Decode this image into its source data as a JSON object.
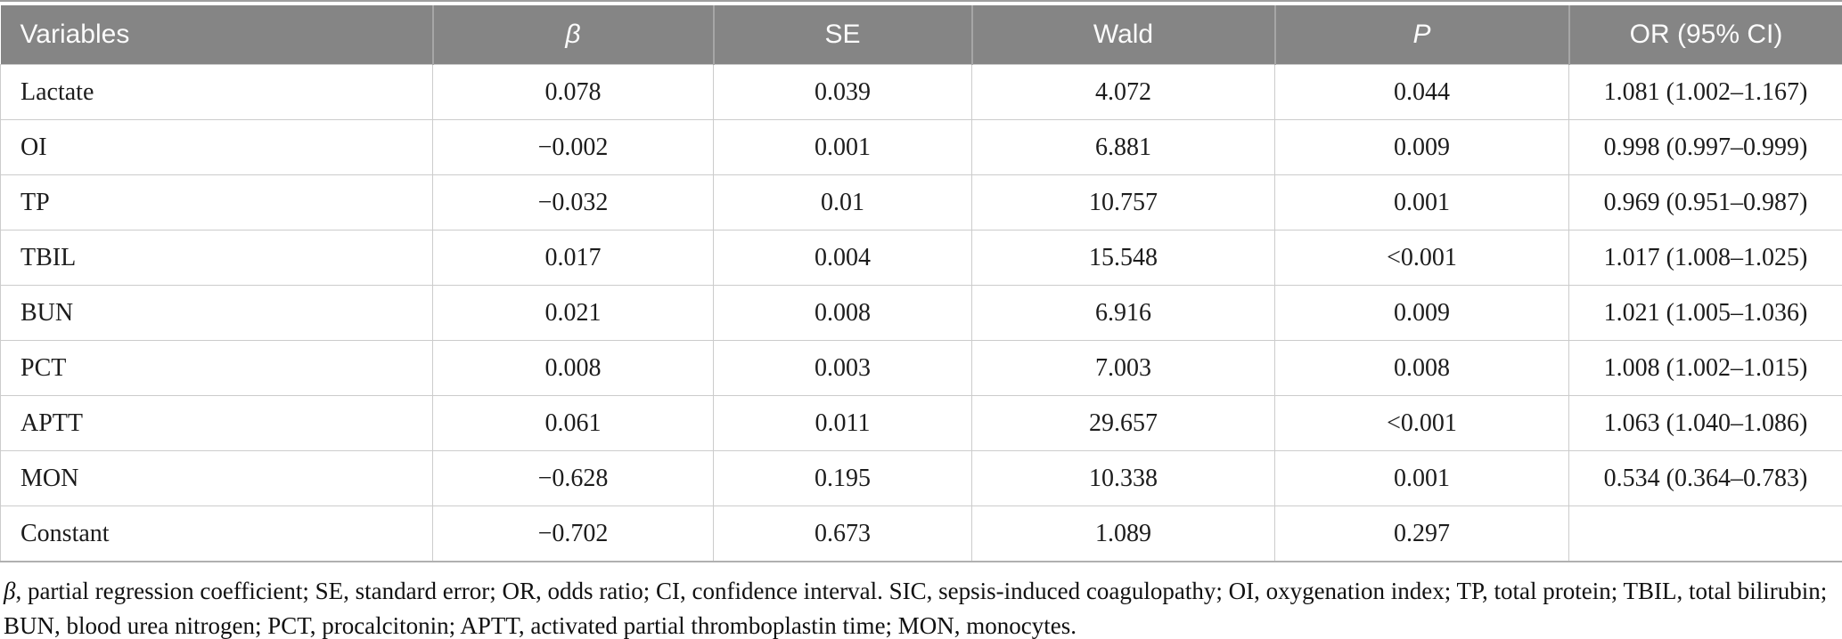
{
  "table": {
    "columns": [
      {
        "key": "variable",
        "label": "Variables",
        "italic": false
      },
      {
        "key": "beta",
        "label": "β",
        "italic": true
      },
      {
        "key": "se",
        "label": "SE",
        "italic": false
      },
      {
        "key": "wald",
        "label": "Wald",
        "italic": false
      },
      {
        "key": "p",
        "label": "P",
        "italic": true
      },
      {
        "key": "or_ci",
        "label": "OR (95% CI)",
        "italic": false
      }
    ],
    "rows": [
      {
        "variable": "Lactate",
        "beta": "0.078",
        "se": "0.039",
        "wald": "4.072",
        "p": "0.044",
        "or_ci": "1.081 (1.002–1.167)"
      },
      {
        "variable": "OI",
        "beta": "−0.002",
        "se": "0.001",
        "wald": "6.881",
        "p": "0.009",
        "or_ci": "0.998 (0.997–0.999)"
      },
      {
        "variable": "TP",
        "beta": "−0.032",
        "se": "0.01",
        "wald": "10.757",
        "p": "0.001",
        "or_ci": "0.969 (0.951–0.987)"
      },
      {
        "variable": "TBIL",
        "beta": "0.017",
        "se": "0.004",
        "wald": "15.548",
        "p": "<0.001",
        "or_ci": "1.017 (1.008–1.025)"
      },
      {
        "variable": "BUN",
        "beta": "0.021",
        "se": "0.008",
        "wald": "6.916",
        "p": "0.009",
        "or_ci": "1.021 (1.005–1.036)"
      },
      {
        "variable": "PCT",
        "beta": "0.008",
        "se": "0.003",
        "wald": "7.003",
        "p": "0.008",
        "or_ci": "1.008 (1.002–1.015)"
      },
      {
        "variable": "APTT",
        "beta": "0.061",
        "se": "0.011",
        "wald": "29.657",
        "p": "<0.001",
        "or_ci": "1.063 (1.040–1.086)"
      },
      {
        "variable": "MON",
        "beta": "−0.628",
        "se": "0.195",
        "wald": "10.338",
        "p": "0.001",
        "or_ci": "0.534 (0.364–0.783)"
      },
      {
        "variable": "Constant",
        "beta": "−0.702",
        "se": "0.673",
        "wald": "1.089",
        "p": "0.297",
        "or_ci": ""
      }
    ]
  },
  "footnote": {
    "lead": "β",
    "rest": ", partial regression coefficient; SE, standard error; OR, odds ratio; CI, confidence interval. SIC, sepsis-induced coagulopathy; OI, oxygenation index; TP, total protein; TBIL, total bilirubin; BUN, blood urea nitrogen; PCT, procalcitonin; APTT, activated partial thromboplastin time; MON, monocytes."
  },
  "colors": {
    "header_bg": "#858585",
    "header_text": "#fbfbfb",
    "header_divider": "#a6a6a6",
    "body_text": "#1c1c1c",
    "grid_line": "#cccccc",
    "top_rule": "#9e9e9e",
    "bottom_rule": "#b0b0b0"
  }
}
